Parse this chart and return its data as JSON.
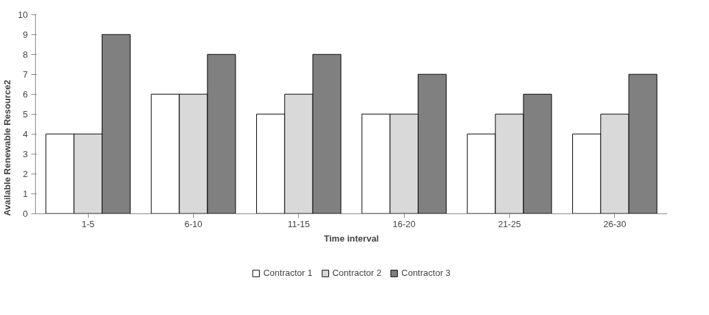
{
  "chart_data": {
    "type": "bar",
    "xlabel": "Time interval",
    "ylabel": "Available Renewable Resource2",
    "categories": [
      "1-5",
      "6-10",
      "11-15",
      "16-20",
      "21-25",
      "26-30"
    ],
    "series": [
      {
        "name": "Contractor 1",
        "color": "#ffffff",
        "values": [
          4,
          6,
          5,
          5,
          4,
          4
        ]
      },
      {
        "name": "Contractor 2",
        "color": "#d9d9d9",
        "values": [
          4,
          6,
          6,
          5,
          5,
          5
        ]
      },
      {
        "name": "Contractor 3",
        "color": "#808080",
        "values": [
          9,
          8,
          8,
          7,
          6,
          7
        ]
      }
    ],
    "ylim": [
      0,
      10
    ],
    "yticks": [
      0,
      1,
      2,
      3,
      4,
      5,
      6,
      7,
      8,
      9,
      10
    ],
    "grid": false,
    "legend": "bottom"
  }
}
